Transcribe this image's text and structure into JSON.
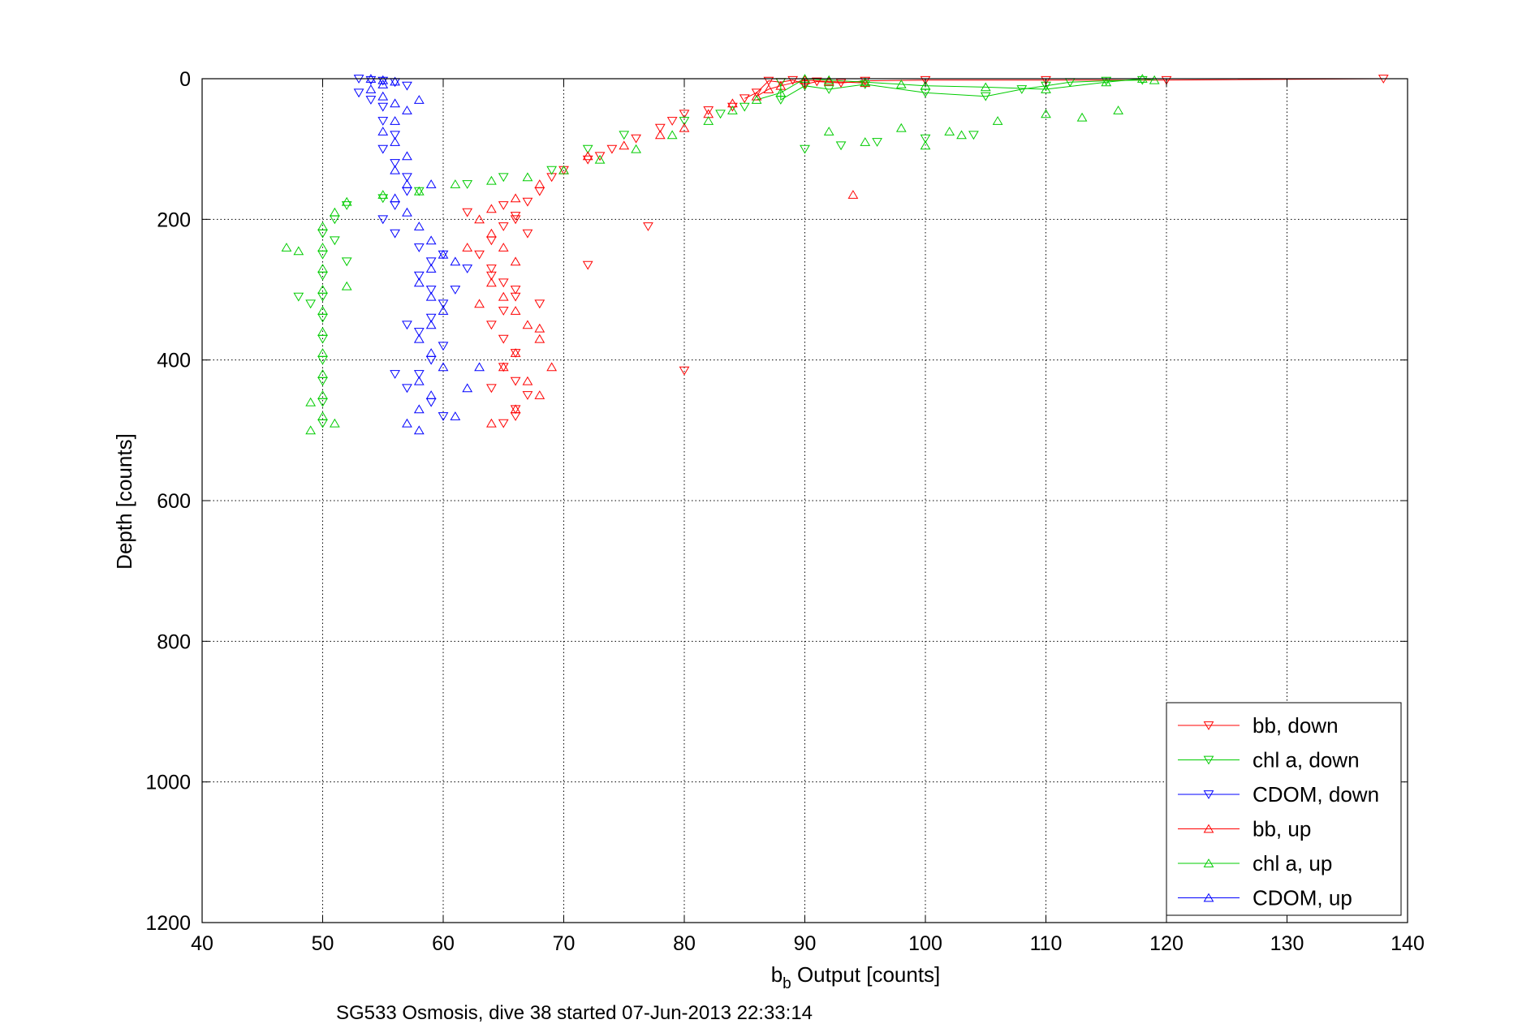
{
  "chart_data": {
    "type": "scatter",
    "xlabel_main": "b",
    "xlabel_sub": "b",
    "xlabel_rest": " Output [counts]",
    "ylabel": "Depth [counts]",
    "footer": "SG533 Osmosis, dive 38 started 07-Jun-2013 22:33:14",
    "xlim": [
      40,
      140
    ],
    "ylim": [
      0,
      1200
    ],
    "y_reversed": true,
    "grid": true,
    "legend_position": "bottom-right",
    "x_ticks": [
      "40",
      "50",
      "60",
      "70",
      "80",
      "90",
      "100",
      "110",
      "120",
      "130",
      "140"
    ],
    "y_ticks": [
      "0",
      "200",
      "400",
      "600",
      "800",
      "1000",
      "1200"
    ],
    "series": [
      {
        "name": "bb, down",
        "color": "#ff0000",
        "marker": "triangle-down",
        "points": [
          [
            87,
            3
          ],
          [
            88,
            5
          ],
          [
            89,
            2
          ],
          [
            90,
            8
          ],
          [
            91,
            4
          ],
          [
            93,
            6
          ],
          [
            95,
            3
          ],
          [
            100,
            2
          ],
          [
            110,
            2
          ],
          [
            120,
            2
          ],
          [
            138,
            0
          ],
          [
            86,
            20
          ],
          [
            85,
            28
          ],
          [
            84,
            40
          ],
          [
            82,
            45
          ],
          [
            80,
            50
          ],
          [
            79,
            60
          ],
          [
            78,
            70
          ],
          [
            76,
            85
          ],
          [
            74,
            100
          ],
          [
            73,
            110
          ],
          [
            72,
            115
          ],
          [
            70,
            130
          ],
          [
            69,
            140
          ],
          [
            68,
            160
          ],
          [
            67,
            175
          ],
          [
            66,
            195
          ],
          [
            65,
            210
          ],
          [
            64,
            230
          ],
          [
            63,
            250
          ],
          [
            64,
            270
          ],
          [
            65,
            290
          ],
          [
            66,
            310
          ],
          [
            65,
            330
          ],
          [
            64,
            350
          ],
          [
            65,
            370
          ],
          [
            66,
            390
          ],
          [
            65,
            410
          ],
          [
            66,
            430
          ],
          [
            67,
            450
          ],
          [
            66,
            470
          ],
          [
            65,
            490
          ],
          [
            77,
            210
          ],
          [
            72,
            265
          ],
          [
            80,
            415
          ],
          [
            65,
            180
          ],
          [
            66,
            200
          ],
          [
            67,
            220
          ],
          [
            62,
            190
          ],
          [
            64,
            280
          ],
          [
            66,
            300
          ],
          [
            68,
            320
          ],
          [
            64,
            440
          ],
          [
            66,
            480
          ]
        ]
      },
      {
        "name": "chl a, down",
        "color": "#00cc00",
        "marker": "triangle-down",
        "points": [
          [
            88,
            5
          ],
          [
            90,
            10
          ],
          [
            92,
            15
          ],
          [
            95,
            8
          ],
          [
            100,
            20
          ],
          [
            105,
            25
          ],
          [
            108,
            15
          ],
          [
            110,
            10
          ],
          [
            112,
            5
          ],
          [
            115,
            3
          ],
          [
            118,
            2
          ],
          [
            88,
            30
          ],
          [
            85,
            40
          ],
          [
            83,
            50
          ],
          [
            80,
            60
          ],
          [
            75,
            80
          ],
          [
            72,
            100
          ],
          [
            69,
            130
          ],
          [
            65,
            140
          ],
          [
            62,
            150
          ],
          [
            58,
            160
          ],
          [
            55,
            170
          ],
          [
            52,
            180
          ],
          [
            51,
            200
          ],
          [
            50,
            220
          ],
          [
            50,
            250
          ],
          [
            50,
            280
          ],
          [
            50,
            310
          ],
          [
            50,
            340
          ],
          [
            50,
            370
          ],
          [
            50,
            400
          ],
          [
            50,
            430
          ],
          [
            50,
            460
          ],
          [
            50,
            490
          ],
          [
            49,
            320
          ],
          [
            48,
            310
          ],
          [
            52,
            260
          ],
          [
            51,
            230
          ],
          [
            96,
            90
          ],
          [
            90,
            100
          ],
          [
            93,
            95
          ],
          [
            100,
            85
          ],
          [
            104,
            80
          ]
        ]
      },
      {
        "name": "CDOM, down",
        "color": "#0000ff",
        "marker": "triangle-down",
        "points": [
          [
            53,
            0
          ],
          [
            54,
            2
          ],
          [
            55,
            3
          ],
          [
            56,
            5
          ],
          [
            57,
            10
          ],
          [
            53,
            20
          ],
          [
            54,
            30
          ],
          [
            55,
            40
          ],
          [
            55,
            60
          ],
          [
            56,
            80
          ],
          [
            55,
            100
          ],
          [
            56,
            120
          ],
          [
            57,
            140
          ],
          [
            57,
            160
          ],
          [
            56,
            180
          ],
          [
            55,
            200
          ],
          [
            56,
            220
          ],
          [
            58,
            240
          ],
          [
            59,
            260
          ],
          [
            58,
            280
          ],
          [
            59,
            300
          ],
          [
            60,
            320
          ],
          [
            59,
            340
          ],
          [
            58,
            360
          ],
          [
            60,
            380
          ],
          [
            59,
            400
          ],
          [
            58,
            420
          ],
          [
            57,
            440
          ],
          [
            59,
            460
          ],
          [
            60,
            480
          ],
          [
            57,
            350
          ],
          [
            56,
            420
          ],
          [
            61,
            300
          ],
          [
            60,
            250
          ],
          [
            62,
            270
          ]
        ]
      },
      {
        "name": "bb, up",
        "color": "#ff0000",
        "marker": "triangle-up",
        "points": [
          [
            90,
            2
          ],
          [
            92,
            4
          ],
          [
            95,
            6
          ],
          [
            88,
            10
          ],
          [
            87,
            15
          ],
          [
            86,
            25
          ],
          [
            84,
            35
          ],
          [
            82,
            50
          ],
          [
            80,
            70
          ],
          [
            78,
            80
          ],
          [
            75,
            95
          ],
          [
            72,
            110
          ],
          [
            70,
            130
          ],
          [
            68,
            150
          ],
          [
            66,
            170
          ],
          [
            64,
            185
          ],
          [
            63,
            200
          ],
          [
            64,
            220
          ],
          [
            65,
            240
          ],
          [
            66,
            260
          ],
          [
            64,
            290
          ],
          [
            65,
            310
          ],
          [
            66,
            330
          ],
          [
            67,
            350
          ],
          [
            68,
            370
          ],
          [
            66,
            390
          ],
          [
            65,
            410
          ],
          [
            67,
            430
          ],
          [
            68,
            450
          ],
          [
            66,
            470
          ],
          [
            64,
            490
          ],
          [
            94,
            165
          ],
          [
            62,
            240
          ],
          [
            63,
            320
          ],
          [
            68,
            355
          ],
          [
            69,
            410
          ]
        ]
      },
      {
        "name": "chl a, up",
        "color": "#00cc00",
        "marker": "triangle-up",
        "points": [
          [
            90,
            0
          ],
          [
            92,
            2
          ],
          [
            95,
            5
          ],
          [
            98,
            8
          ],
          [
            100,
            10
          ],
          [
            105,
            12
          ],
          [
            110,
            15
          ],
          [
            115,
            5
          ],
          [
            118,
            0
          ],
          [
            119,
            2
          ],
          [
            88,
            20
          ],
          [
            86,
            30
          ],
          [
            84,
            45
          ],
          [
            82,
            60
          ],
          [
            79,
            80
          ],
          [
            76,
            100
          ],
          [
            73,
            115
          ],
          [
            70,
            130
          ],
          [
            67,
            140
          ],
          [
            64,
            145
          ],
          [
            61,
            150
          ],
          [
            58,
            160
          ],
          [
            55,
            165
          ],
          [
            52,
            175
          ],
          [
            51,
            190
          ],
          [
            50,
            210
          ],
          [
            50,
            240
          ],
          [
            50,
            270
          ],
          [
            50,
            300
          ],
          [
            50,
            330
          ],
          [
            50,
            360
          ],
          [
            50,
            390
          ],
          [
            50,
            420
          ],
          [
            50,
            450
          ],
          [
            50,
            480
          ],
          [
            49,
            460
          ],
          [
            49,
            500
          ],
          [
            51,
            490
          ],
          [
            47,
            240
          ],
          [
            48,
            245
          ],
          [
            52,
            295
          ],
          [
            98,
            70
          ],
          [
            102,
            75
          ],
          [
            106,
            60
          ],
          [
            110,
            50
          ],
          [
            113,
            55
          ],
          [
            116,
            45
          ],
          [
            92,
            75
          ],
          [
            95,
            90
          ],
          [
            100,
            95
          ],
          [
            103,
            80
          ]
        ]
      },
      {
        "name": "CDOM, up",
        "color": "#0000ff",
        "marker": "triangle-up",
        "points": [
          [
            54,
            0
          ],
          [
            55,
            2
          ],
          [
            56,
            4
          ],
          [
            55,
            8
          ],
          [
            54,
            15
          ],
          [
            55,
            25
          ],
          [
            56,
            35
          ],
          [
            57,
            45
          ],
          [
            56,
            60
          ],
          [
            55,
            75
          ],
          [
            56,
            90
          ],
          [
            57,
            110
          ],
          [
            56,
            130
          ],
          [
            57,
            150
          ],
          [
            56,
            170
          ],
          [
            57,
            190
          ],
          [
            58,
            210
          ],
          [
            59,
            230
          ],
          [
            60,
            250
          ],
          [
            59,
            270
          ],
          [
            58,
            290
          ],
          [
            59,
            310
          ],
          [
            60,
            330
          ],
          [
            59,
            350
          ],
          [
            58,
            370
          ],
          [
            59,
            390
          ],
          [
            60,
            410
          ],
          [
            58,
            430
          ],
          [
            59,
            450
          ],
          [
            58,
            470
          ],
          [
            57,
            490
          ],
          [
            58,
            30
          ],
          [
            59,
            150
          ],
          [
            61,
            260
          ],
          [
            62,
            440
          ],
          [
            61,
            480
          ],
          [
            58,
            500
          ],
          [
            63,
            410
          ]
        ]
      }
    ]
  }
}
